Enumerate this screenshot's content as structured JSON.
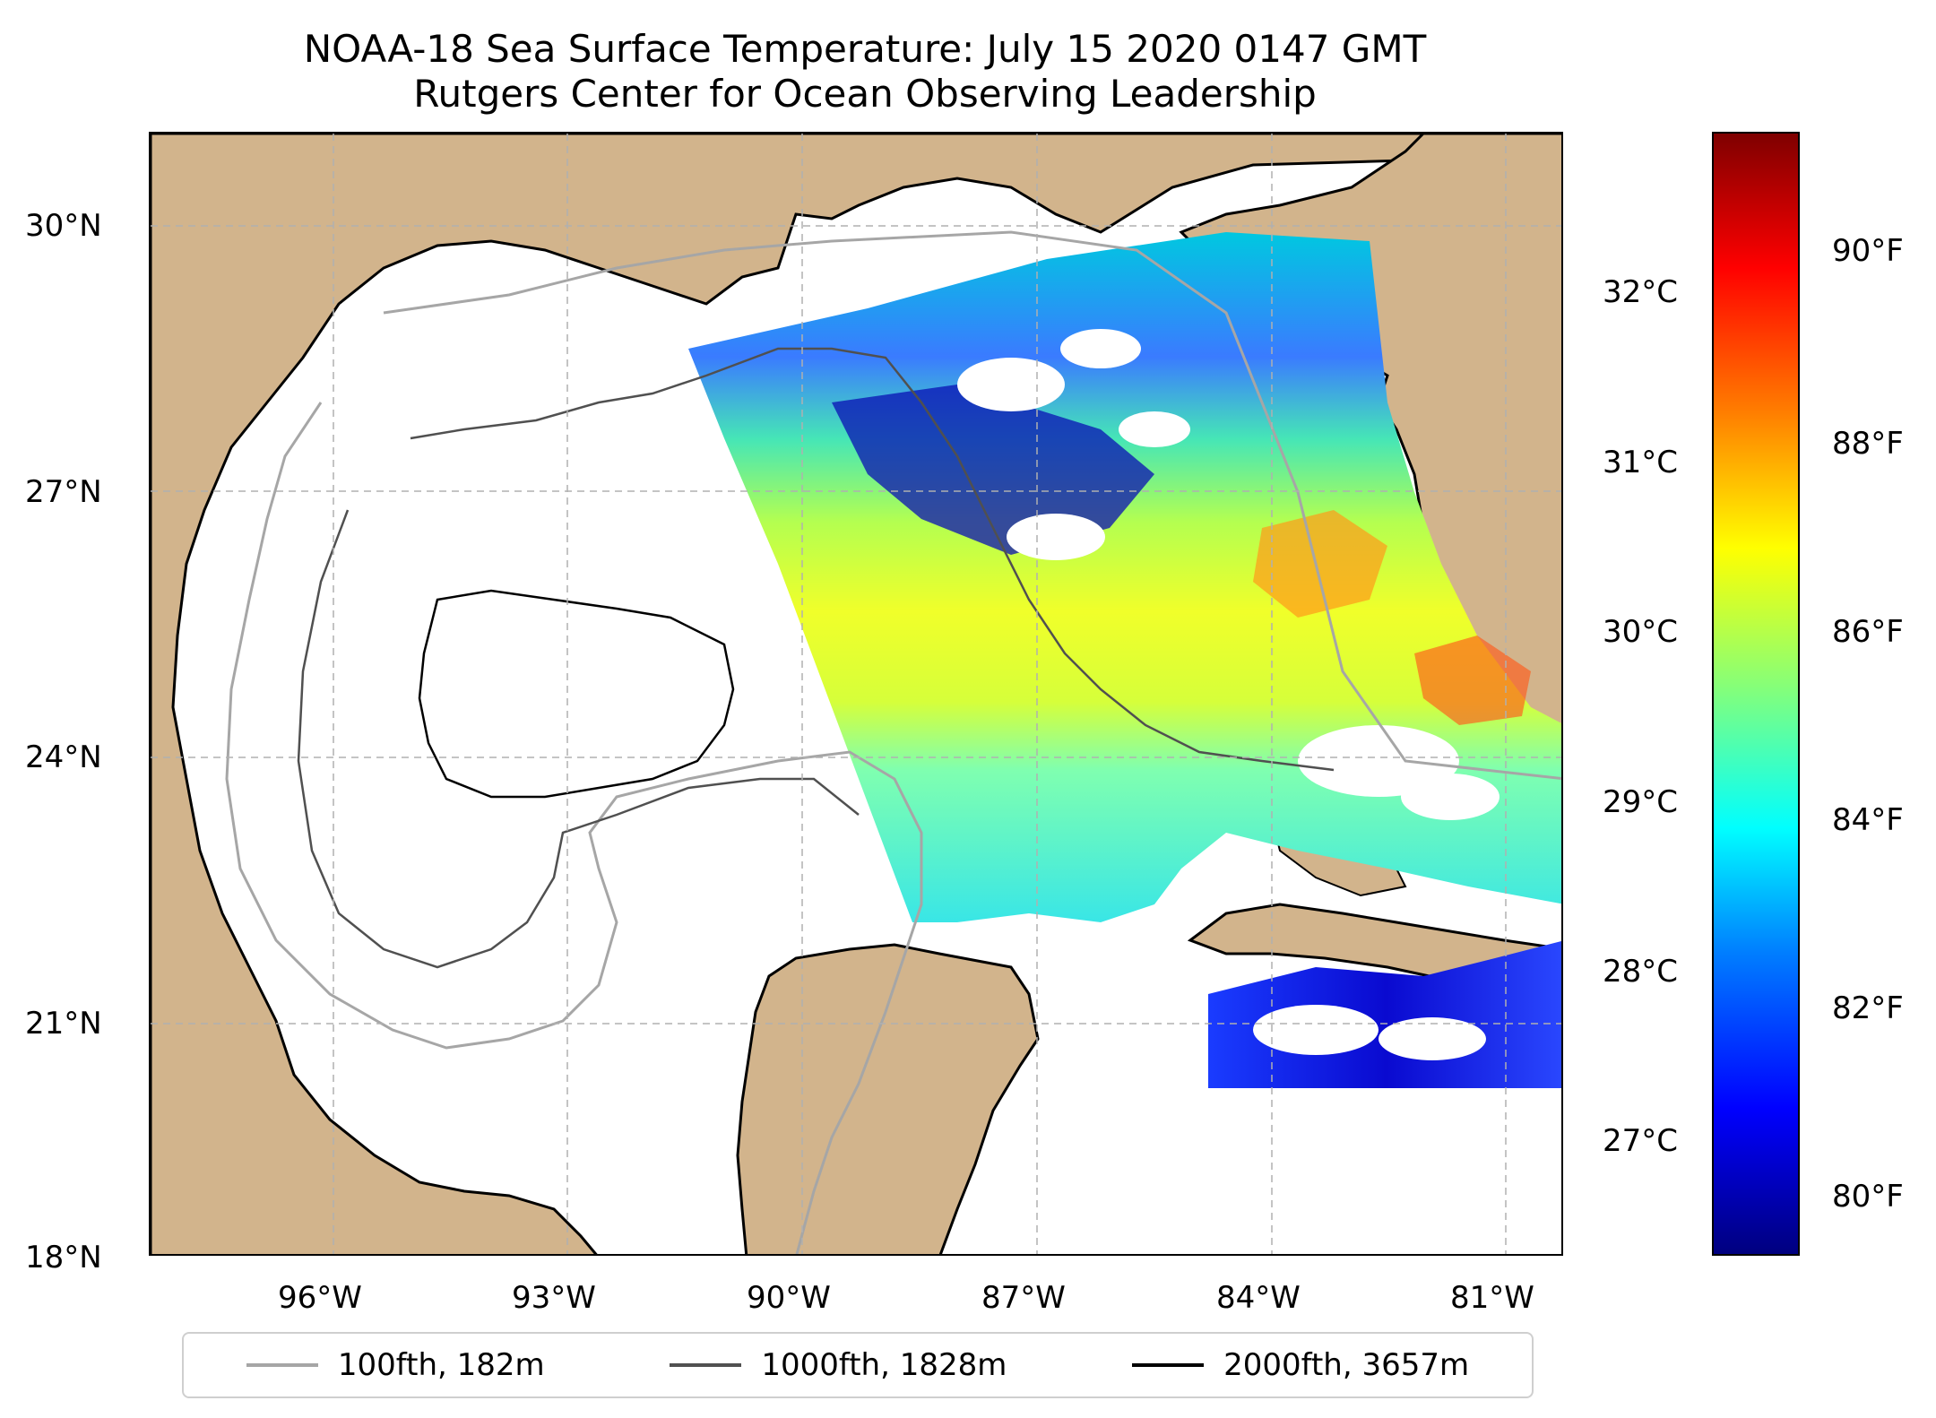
{
  "title": {
    "line1": "NOAA-18 Sea Surface Temperature: July 15 2020 0147 GMT",
    "line2": "Rutgers Center for Ocean Observing Leadership"
  },
  "map": {
    "lat_labels": [
      "30°N",
      "27°N",
      "24°N",
      "21°N",
      "18°N"
    ],
    "lon_labels": [
      "96°W",
      "93°W",
      "90°W",
      "87°W",
      "84°W",
      "81°W"
    ],
    "extent": {
      "lon_min": -98.3,
      "lon_max": -80.2,
      "lat_min": 18.0,
      "lat_max": 31.1
    },
    "colors": {
      "land": "#d2b48c",
      "lakes": "#98b4e0",
      "ocean": "#ffffff",
      "grid": "#b0b0b0"
    }
  },
  "colorbar": {
    "celsius_labels": [
      "32°C",
      "31°C",
      "30°C",
      "29°C",
      "28°C",
      "27°C"
    ],
    "fahrenheit_labels": [
      "90°F",
      "88°F",
      "86°F",
      "84°F",
      "82°F",
      "80°F"
    ],
    "colormap": "jet"
  },
  "legend": {
    "items": [
      {
        "label": "100fth, 182m",
        "color": "#a6a6a6"
      },
      {
        "label": "1000fth, 1828m",
        "color": "#505050"
      },
      {
        "label": "2000fth, 3657m",
        "color": "#000000"
      }
    ]
  }
}
